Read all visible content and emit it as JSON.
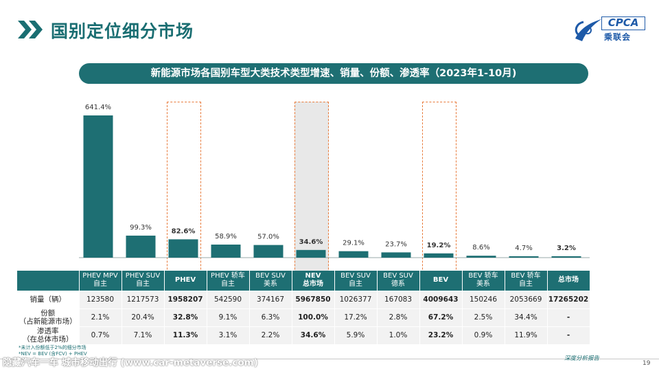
{
  "header": {
    "title": "国别定位细分市场",
    "logo_text": "CPCA",
    "logo_sub": "乘联会"
  },
  "banner": {
    "text": "新能源市场各国别车型大类技术类型增速、销量、份额、渗透率（2023年1-10月)"
  },
  "chart_data": {
    "type": "bar",
    "unit": "%",
    "categories": [
      "PHEV MPV 自主",
      "PHEV SUV 自主",
      "PHEV",
      "PHEV 轿车 自主",
      "BEV SUV 美系",
      "NEV 总市场",
      "BEV SUV 自主",
      "BEV SUV 德系",
      "BEV",
      "BEV 轿车 美系",
      "BEV 轿车 自主",
      "总市场"
    ],
    "values": [
      641.4,
      99.3,
      82.6,
      58.9,
      57.0,
      34.6,
      29.1,
      23.7,
      19.2,
      8.6,
      4.7,
      3.2
    ],
    "labels": [
      "641.4%",
      "99.3%",
      "82.6%",
      "58.9%",
      "57.0%",
      "34.6%",
      "29.1%",
      "23.7%",
      "19.2%",
      "8.6%",
      "4.7%",
      "3.2%"
    ],
    "bold_labels": [
      false,
      false,
      true,
      false,
      false,
      true,
      false,
      false,
      true,
      false,
      false,
      true
    ],
    "ylim": [
      0,
      700
    ],
    "bar_color": "#1e6f73",
    "highlight_dashed": [
      "PHEV",
      "NEV 总市场",
      "BEV"
    ],
    "highlight_shaded": [
      "NEV 总市场"
    ],
    "grid": false,
    "legend": "none"
  },
  "table": {
    "headers": [
      [
        "PHEV MPV",
        "自主"
      ],
      [
        "PHEV SUV",
        "自主"
      ],
      [
        "PHEV",
        ""
      ],
      [
        "PHEV 轿车",
        "自主"
      ],
      [
        "BEV SUV",
        "美系"
      ],
      [
        "NEV",
        "总市场"
      ],
      [
        "BEV SUV",
        "自主"
      ],
      [
        "BEV SUV",
        "德系"
      ],
      [
        "BEV",
        ""
      ],
      [
        "BEV 轿车",
        "美系"
      ],
      [
        "BEV 轿车",
        "自主"
      ],
      [
        "总市场",
        ""
      ]
    ],
    "header_bold": [
      false,
      false,
      true,
      false,
      false,
      true,
      false,
      false,
      true,
      false,
      false,
      true
    ],
    "rows": [
      {
        "label1": "销量（辆）",
        "label2": "",
        "values": [
          "123580",
          "1217573",
          "1958207",
          "542590",
          "374167",
          "5967850",
          "1026377",
          "167083",
          "4009643",
          "150246",
          "2053669",
          "17265202"
        ]
      },
      {
        "label1": "份额",
        "label2": "（占新能源市场）",
        "values": [
          "2.1%",
          "20.4%",
          "32.8%",
          "9.1%",
          "6.3%",
          "100.0%",
          "17.2%",
          "2.8%",
          "67.2%",
          "2.5%",
          "34.4%",
          "-"
        ]
      },
      {
        "label1": "渗透率",
        "label2": "（在总体市场）",
        "values": [
          "0.7%",
          "7.1%",
          "11.3%",
          "3.1%",
          "2.2%",
          "34.6%",
          "5.9%",
          "1.0%",
          "23.2%",
          "0.9%",
          "11.9%",
          "-"
        ]
      }
    ]
  },
  "notes": {
    "line1": "*未计入份额低于2%的细分市场",
    "line2": "*NEV = BEV (含FCV) + PHEV"
  },
  "footer": {
    "watermark": "隐藏汽车一车 城市移动出行 (www.car-metaverse.com)",
    "right_text": "深度分析报告",
    "page_number": "19"
  }
}
